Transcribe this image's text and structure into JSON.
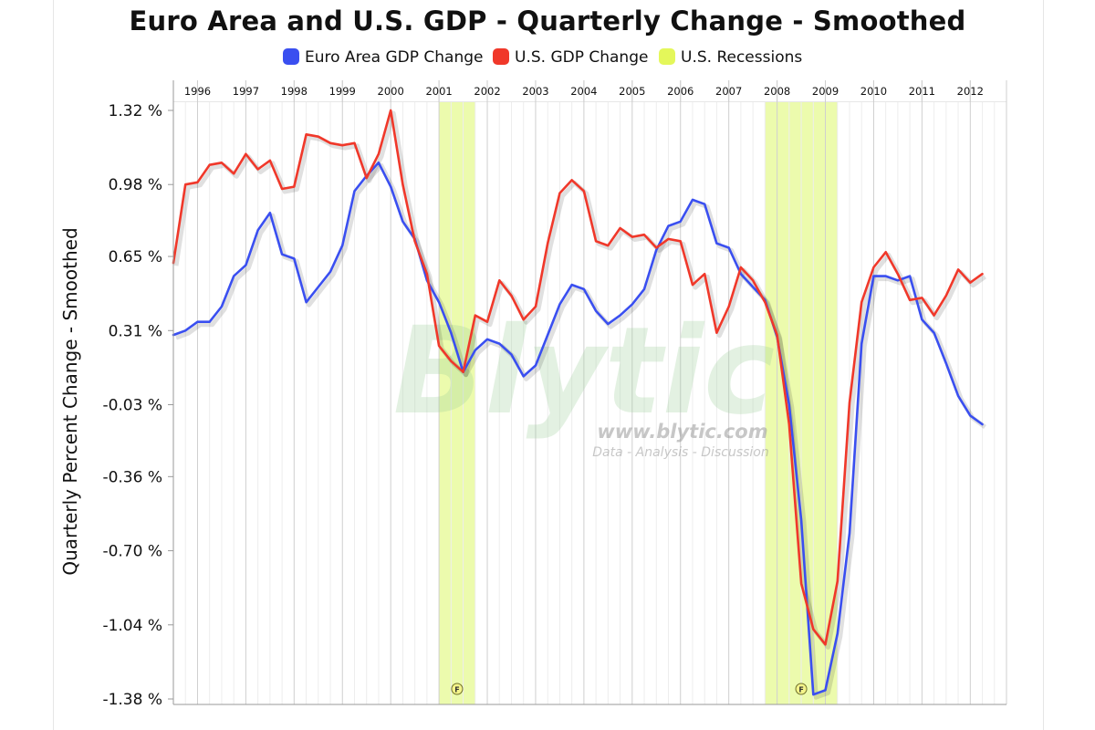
{
  "title": "Euro Area and U.S. GDP - Quarterly Change - Smoothed",
  "watermark": {
    "logo_text": "Blytic",
    "url": "www.blytic.com",
    "tagline": "Data - Analysis - Discussion"
  },
  "recession_marker_glyph": "F",
  "chart_data": {
    "type": "line",
    "title": "Euro Area and U.S. GDP - Quarterly Change - Smoothed",
    "xlabel": "",
    "ylabel": "Quarterly Percent Change - Smoothed",
    "x_range": [
      1995.5,
      2012.75
    ],
    "ylim": [
      -1.38,
      1.32
    ],
    "grid": true,
    "legend_position": "top",
    "x_tick_labels": [
      "1996",
      "1997",
      "1998",
      "1999",
      "2000",
      "2001",
      "2002",
      "2003",
      "2004",
      "2005",
      "2006",
      "2007",
      "2008",
      "2009",
      "2010",
      "2011",
      "2012"
    ],
    "y_ticks": [
      1.32,
      0.98,
      0.65,
      0.31,
      -0.03,
      -0.36,
      -0.7,
      -1.04,
      -1.38
    ],
    "y_tick_labels": [
      "1.32 %",
      "0.98 %",
      "0.65 %",
      "0.31 %",
      "-0.03 %",
      "-0.36 %",
      "-0.70 %",
      "-1.04 %",
      "-1.38 %"
    ],
    "series": [
      {
        "name": "Euro Area GDP Change",
        "color": "#3a4ff0",
        "points": [
          [
            1995.5,
            0.29
          ],
          [
            1995.75,
            0.31
          ],
          [
            1996.0,
            0.35
          ],
          [
            1996.25,
            0.35
          ],
          [
            1996.5,
            0.42
          ],
          [
            1996.75,
            0.56
          ],
          [
            1997.0,
            0.61
          ],
          [
            1997.25,
            0.77
          ],
          [
            1997.5,
            0.85
          ],
          [
            1997.75,
            0.66
          ],
          [
            1998.0,
            0.64
          ],
          [
            1998.25,
            0.44
          ],
          [
            1998.5,
            0.51
          ],
          [
            1998.75,
            0.58
          ],
          [
            1999.0,
            0.7
          ],
          [
            1999.25,
            0.95
          ],
          [
            1999.5,
            1.02
          ],
          [
            1999.75,
            1.08
          ],
          [
            2000.0,
            0.97
          ],
          [
            2000.25,
            0.81
          ],
          [
            2000.5,
            0.73
          ],
          [
            2000.75,
            0.54
          ],
          [
            2001.0,
            0.44
          ],
          [
            2001.25,
            0.3
          ],
          [
            2001.5,
            0.12
          ],
          [
            2001.75,
            0.22
          ],
          [
            2002.0,
            0.27
          ],
          [
            2002.25,
            0.25
          ],
          [
            2002.5,
            0.2
          ],
          [
            2002.75,
            0.1
          ],
          [
            2003.0,
            0.15
          ],
          [
            2003.25,
            0.29
          ],
          [
            2003.5,
            0.43
          ],
          [
            2003.75,
            0.52
          ],
          [
            2004.0,
            0.5
          ],
          [
            2004.25,
            0.4
          ],
          [
            2004.5,
            0.34
          ],
          [
            2004.75,
            0.38
          ],
          [
            2005.0,
            0.43
          ],
          [
            2005.25,
            0.5
          ],
          [
            2005.5,
            0.68
          ],
          [
            2005.75,
            0.79
          ],
          [
            2006.0,
            0.81
          ],
          [
            2006.25,
            0.91
          ],
          [
            2006.5,
            0.89
          ],
          [
            2006.75,
            0.71
          ],
          [
            2007.0,
            0.69
          ],
          [
            2007.25,
            0.57
          ],
          [
            2007.5,
            0.51
          ],
          [
            2007.75,
            0.45
          ],
          [
            2008.0,
            0.28
          ],
          [
            2008.25,
            -0.03
          ],
          [
            2008.5,
            -0.56
          ],
          [
            2008.75,
            -1.36
          ],
          [
            2009.0,
            -1.34
          ],
          [
            2009.25,
            -1.08
          ],
          [
            2009.5,
            -0.62
          ],
          [
            2009.75,
            0.25
          ],
          [
            2010.0,
            0.56
          ],
          [
            2010.25,
            0.56
          ],
          [
            2010.5,
            0.54
          ],
          [
            2010.75,
            0.56
          ],
          [
            2011.0,
            0.36
          ],
          [
            2011.25,
            0.3
          ],
          [
            2011.5,
            0.16
          ],
          [
            2011.75,
            0.01
          ],
          [
            2012.0,
            -0.08
          ],
          [
            2012.25,
            -0.12
          ]
        ]
      },
      {
        "name": "U.S. GDP Change",
        "color": "#f0382a",
        "points": [
          [
            1995.5,
            0.62
          ],
          [
            1995.75,
            0.98
          ],
          [
            1996.0,
            0.99
          ],
          [
            1996.25,
            1.07
          ],
          [
            1996.5,
            1.08
          ],
          [
            1996.75,
            1.03
          ],
          [
            1997.0,
            1.12
          ],
          [
            1997.25,
            1.05
          ],
          [
            1997.5,
            1.09
          ],
          [
            1997.75,
            0.96
          ],
          [
            1998.0,
            0.97
          ],
          [
            1998.25,
            1.21
          ],
          [
            1998.5,
            1.2
          ],
          [
            1998.75,
            1.17
          ],
          [
            1999.0,
            1.16
          ],
          [
            1999.25,
            1.17
          ],
          [
            1999.5,
            1.01
          ],
          [
            1999.75,
            1.12
          ],
          [
            2000.0,
            1.32
          ],
          [
            2000.25,
            0.98
          ],
          [
            2000.5,
            0.72
          ],
          [
            2000.75,
            0.57
          ],
          [
            2001.0,
            0.24
          ],
          [
            2001.25,
            0.17
          ],
          [
            2001.5,
            0.12
          ],
          [
            2001.75,
            0.38
          ],
          [
            2002.0,
            0.35
          ],
          [
            2002.25,
            0.54
          ],
          [
            2002.5,
            0.47
          ],
          [
            2002.75,
            0.36
          ],
          [
            2003.0,
            0.42
          ],
          [
            2003.25,
            0.71
          ],
          [
            2003.5,
            0.94
          ],
          [
            2003.75,
            1.0
          ],
          [
            2004.0,
            0.95
          ],
          [
            2004.25,
            0.72
          ],
          [
            2004.5,
            0.7
          ],
          [
            2004.75,
            0.78
          ],
          [
            2005.0,
            0.74
          ],
          [
            2005.25,
            0.75
          ],
          [
            2005.5,
            0.69
          ],
          [
            2005.75,
            0.73
          ],
          [
            2006.0,
            0.72
          ],
          [
            2006.25,
            0.52
          ],
          [
            2006.5,
            0.57
          ],
          [
            2006.75,
            0.3
          ],
          [
            2007.0,
            0.42
          ],
          [
            2007.25,
            0.6
          ],
          [
            2007.5,
            0.54
          ],
          [
            2007.75,
            0.44
          ],
          [
            2008.0,
            0.29
          ],
          [
            2008.25,
            -0.12
          ],
          [
            2008.5,
            -0.85
          ],
          [
            2008.75,
            -1.06
          ],
          [
            2009.0,
            -1.13
          ],
          [
            2009.25,
            -0.84
          ],
          [
            2009.5,
            -0.02
          ],
          [
            2009.75,
            0.44
          ],
          [
            2010.0,
            0.6
          ],
          [
            2010.25,
            0.67
          ],
          [
            2010.5,
            0.57
          ],
          [
            2010.75,
            0.45
          ],
          [
            2011.0,
            0.46
          ],
          [
            2011.25,
            0.38
          ],
          [
            2011.5,
            0.47
          ],
          [
            2011.75,
            0.59
          ],
          [
            2012.0,
            0.53
          ],
          [
            2012.25,
            0.57
          ]
        ]
      }
    ],
    "recessions": {
      "name": "U.S. Recessions",
      "color": "#ecfbad",
      "periods": [
        [
          2001.0,
          2001.75
        ],
        [
          2007.75,
          2009.25
        ]
      ]
    }
  }
}
